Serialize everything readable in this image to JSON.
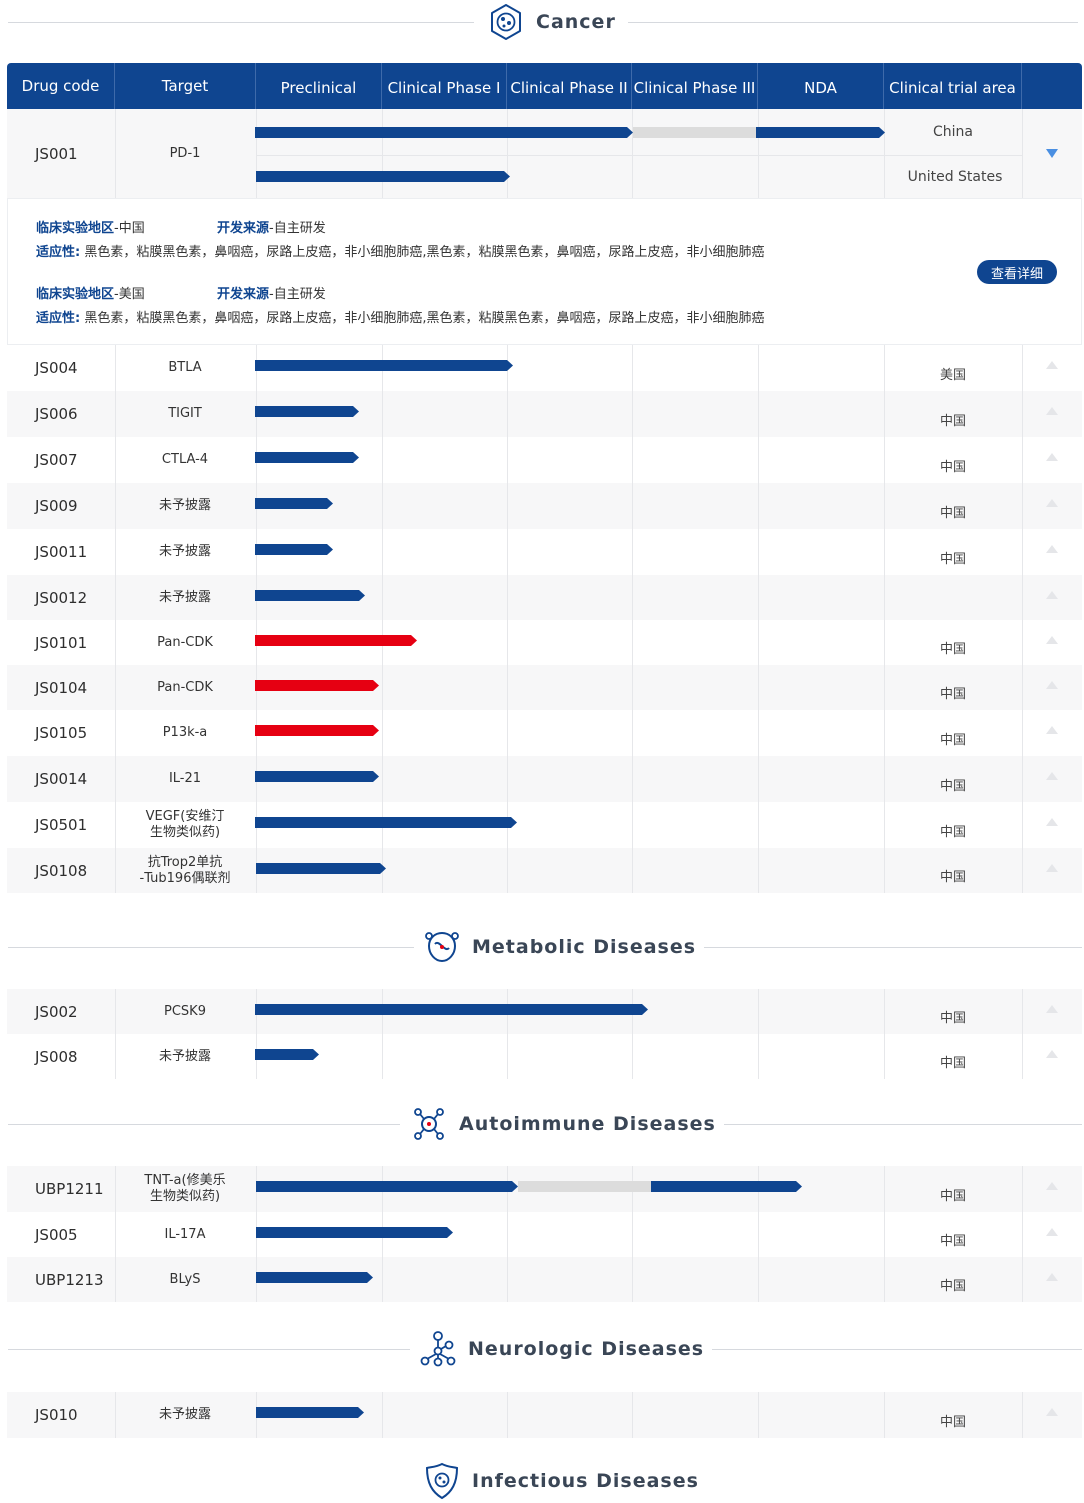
{
  "sections": {
    "cancer": "Cancer",
    "metabolic": "Metabolic Diseases",
    "autoimmune": "Autoimmune Diseases",
    "neurologic": "Neurologic Diseases",
    "infectious": "Infectious Diseases"
  },
  "header": {
    "drug_code": "Drug code",
    "target": "Target",
    "preclinical": "Preclinical",
    "phase1": "Clinical Phase I",
    "phase2": "Clinical Phase II",
    "phase3": "Clinical Phase III",
    "nda": "NDA",
    "area": "Clinical trial area"
  },
  "js001": {
    "code": "JS001",
    "target": "PD-1",
    "area1": "China",
    "area2": "United States"
  },
  "detail": {
    "area_label": "临床实验地区",
    "area1": "-中国",
    "area2": "-美国",
    "source_label": "开发来源",
    "source_value": "-自主研发",
    "ind_label": "适应性:",
    "ind_value": "黑色素，粘膜黑色素，鼻咽癌，尿路上皮癌，非小细胞肺癌,黑色素，粘膜黑色素，鼻咽癌，尿路上皮癌，非小细胞肺癌",
    "button": "查看详细"
  },
  "cancer_rows": [
    {
      "code": "JS004",
      "target": "BTLA",
      "area": "美国"
    },
    {
      "code": "JS006",
      "target": "TIGIT",
      "area": "中国"
    },
    {
      "code": "JS007",
      "target": "CTLA-4",
      "area": "中国"
    },
    {
      "code": "JS009",
      "target": "未予披露",
      "area": "中国"
    },
    {
      "code": "JS0011",
      "target": "未予披露",
      "area": "中国"
    },
    {
      "code": "JS0012",
      "target": "未予披露",
      "area": ""
    },
    {
      "code": "JS0101",
      "target": "Pan-CDK",
      "area": "中国"
    },
    {
      "code": "JS0104",
      "target": "Pan-CDK",
      "area": "中国"
    },
    {
      "code": "JS0105",
      "target": "P13k-a",
      "area": "中国"
    },
    {
      "code": "JS0014",
      "target": "IL-21",
      "area": "中国"
    },
    {
      "code": "JS0501",
      "target": "VEGF(安维汀\n生物类似药)",
      "area": "中国"
    },
    {
      "code": "JS0108",
      "target": "抗Trop2单抗\n-Tub196偶联剂",
      "area": "中国"
    }
  ],
  "metabolic_rows": [
    {
      "code": "JS002",
      "target": "PCSK9",
      "area": "中国"
    },
    {
      "code": "JS008",
      "target": "未予披露",
      "area": "中国"
    }
  ],
  "autoimmune_rows": [
    {
      "code": "UBP1211",
      "target": "TNT-a(修美乐\n生物类似药)",
      "area": "中国"
    },
    {
      "code": "JS005",
      "target": "IL-17A",
      "area": "中国"
    },
    {
      "code": "UBP1213",
      "target": "BLyS",
      "area": "中国"
    }
  ],
  "neurologic_rows": [
    {
      "code": "JS010",
      "target": "未予披露",
      "area": "中国"
    }
  ],
  "colors": {
    "brand_blue": "#0f4590",
    "accent_red": "#e60012",
    "expand_arrow": "#4a8fe2"
  }
}
